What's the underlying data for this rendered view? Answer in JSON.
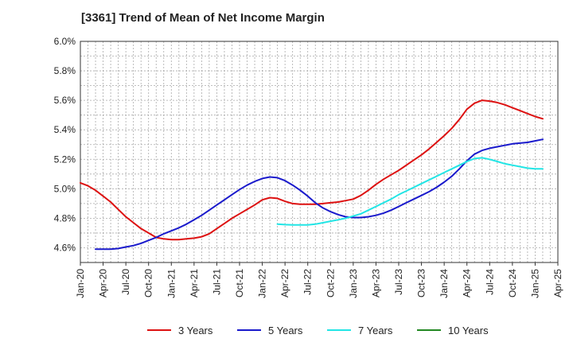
{
  "chart_data": {
    "type": "line",
    "title": "[3361]  Trend of Mean of Net Income Margin",
    "xlabel": "",
    "ylabel": "",
    "x_start": "Jan-20",
    "x_ticks": [
      "Jan-20",
      "Apr-20",
      "Jul-20",
      "Oct-20",
      "Jan-21",
      "Apr-21",
      "Jul-21",
      "Oct-21",
      "Jan-22",
      "Apr-22",
      "Jul-22",
      "Oct-22",
      "Jan-23",
      "Apr-23",
      "Jul-23",
      "Oct-23",
      "Jan-24",
      "Apr-24",
      "Jul-24",
      "Oct-24",
      "Jan-25",
      "Apr-25"
    ],
    "y_ticks": [
      "4.6%",
      "4.8%",
      "5.0%",
      "5.2%",
      "5.4%",
      "5.6%",
      "5.8%",
      "6.0%"
    ],
    "ylim": [
      4.5,
      6.0
    ],
    "grid": true,
    "legend_position": "bottom",
    "series": [
      {
        "name": "3 Years",
        "color": "#dd1111",
        "points": [
          [
            "Jan-20",
            5.04
          ],
          [
            "Feb-20",
            5.02
          ],
          [
            "Mar-20",
            4.99
          ],
          [
            "Apr-20",
            4.95
          ],
          [
            "May-20",
            4.91
          ],
          [
            "Jun-20",
            4.86
          ],
          [
            "Jul-20",
            4.81
          ],
          [
            "Aug-20",
            4.77
          ],
          [
            "Sep-20",
            4.73
          ],
          [
            "Oct-20",
            4.7
          ],
          [
            "Nov-20",
            4.67
          ],
          [
            "Dec-20",
            4.66
          ],
          [
            "Jan-21",
            4.655
          ],
          [
            "Feb-21",
            4.655
          ],
          [
            "Mar-21",
            4.66
          ],
          [
            "Apr-21",
            4.665
          ],
          [
            "May-21",
            4.675
          ],
          [
            "Jun-21",
            4.695
          ],
          [
            "Jul-21",
            4.73
          ],
          [
            "Aug-21",
            4.765
          ],
          [
            "Sep-21",
            4.8
          ],
          [
            "Oct-21",
            4.83
          ],
          [
            "Nov-21",
            4.86
          ],
          [
            "Dec-21",
            4.89
          ],
          [
            "Jan-22",
            4.925
          ],
          [
            "Feb-22",
            4.94
          ],
          [
            "Mar-22",
            4.935
          ],
          [
            "Apr-22",
            4.915
          ],
          [
            "May-22",
            4.9
          ],
          [
            "Jun-22",
            4.895
          ],
          [
            "Jul-22",
            4.895
          ],
          [
            "Aug-22",
            4.895
          ],
          [
            "Sep-22",
            4.9
          ],
          [
            "Oct-22",
            4.905
          ],
          [
            "Nov-22",
            4.91
          ],
          [
            "Dec-22",
            4.92
          ],
          [
            "Jan-23",
            4.93
          ],
          [
            "Feb-23",
            4.955
          ],
          [
            "Mar-23",
            4.99
          ],
          [
            "Apr-23",
            5.03
          ],
          [
            "May-23",
            5.065
          ],
          [
            "Jun-23",
            5.095
          ],
          [
            "Jul-23",
            5.125
          ],
          [
            "Aug-23",
            5.16
          ],
          [
            "Sep-23",
            5.195
          ],
          [
            "Oct-23",
            5.23
          ],
          [
            "Nov-23",
            5.27
          ],
          [
            "Dec-23",
            5.315
          ],
          [
            "Jan-24",
            5.36
          ],
          [
            "Feb-24",
            5.41
          ],
          [
            "Mar-24",
            5.47
          ],
          [
            "Apr-24",
            5.54
          ],
          [
            "May-24",
            5.58
          ],
          [
            "Jun-24",
            5.6
          ],
          [
            "Jul-24",
            5.595
          ],
          [
            "Aug-24",
            5.585
          ],
          [
            "Sep-24",
            5.57
          ],
          [
            "Oct-24",
            5.55
          ],
          [
            "Nov-24",
            5.53
          ],
          [
            "Dec-24",
            5.51
          ],
          [
            "Jan-25",
            5.49
          ],
          [
            "Feb-25",
            5.475
          ]
        ]
      },
      {
        "name": "5 Years",
        "color": "#1a1acc",
        "points": [
          [
            "Mar-20",
            4.59
          ],
          [
            "Apr-20",
            4.59
          ],
          [
            "May-20",
            4.59
          ],
          [
            "Jun-20",
            4.595
          ],
          [
            "Jul-20",
            4.605
          ],
          [
            "Aug-20",
            4.615
          ],
          [
            "Sep-20",
            4.63
          ],
          [
            "Oct-20",
            4.65
          ],
          [
            "Nov-20",
            4.67
          ],
          [
            "Dec-20",
            4.695
          ],
          [
            "Jan-21",
            4.715
          ],
          [
            "Feb-21",
            4.735
          ],
          [
            "Mar-21",
            4.76
          ],
          [
            "Apr-21",
            4.79
          ],
          [
            "May-21",
            4.82
          ],
          [
            "Jun-21",
            4.855
          ],
          [
            "Jul-21",
            4.89
          ],
          [
            "Aug-21",
            4.925
          ],
          [
            "Sep-21",
            4.96
          ],
          [
            "Oct-21",
            4.995
          ],
          [
            "Nov-21",
            5.025
          ],
          [
            "Dec-21",
            5.05
          ],
          [
            "Jan-22",
            5.07
          ],
          [
            "Feb-22",
            5.08
          ],
          [
            "Mar-22",
            5.075
          ],
          [
            "Apr-22",
            5.055
          ],
          [
            "May-22",
            5.025
          ],
          [
            "Jun-22",
            4.99
          ],
          [
            "Jul-22",
            4.95
          ],
          [
            "Aug-22",
            4.905
          ],
          [
            "Sep-22",
            4.87
          ],
          [
            "Oct-22",
            4.845
          ],
          [
            "Nov-22",
            4.825
          ],
          [
            "Dec-22",
            4.81
          ],
          [
            "Jan-23",
            4.805
          ],
          [
            "Feb-23",
            4.805
          ],
          [
            "Mar-23",
            4.81
          ],
          [
            "Apr-23",
            4.82
          ],
          [
            "May-23",
            4.835
          ],
          [
            "Jun-23",
            4.855
          ],
          [
            "Jul-23",
            4.88
          ],
          [
            "Aug-23",
            4.905
          ],
          [
            "Sep-23",
            4.93
          ],
          [
            "Oct-23",
            4.955
          ],
          [
            "Nov-23",
            4.98
          ],
          [
            "Dec-23",
            5.01
          ],
          [
            "Jan-24",
            5.045
          ],
          [
            "Feb-24",
            5.085
          ],
          [
            "Mar-24",
            5.135
          ],
          [
            "Apr-24",
            5.19
          ],
          [
            "May-24",
            5.235
          ],
          [
            "Jun-24",
            5.26
          ],
          [
            "Jul-24",
            5.275
          ],
          [
            "Aug-24",
            5.285
          ],
          [
            "Sep-24",
            5.295
          ],
          [
            "Oct-24",
            5.305
          ],
          [
            "Nov-24",
            5.31
          ],
          [
            "Dec-24",
            5.315
          ],
          [
            "Jan-25",
            5.325
          ],
          [
            "Feb-25",
            5.335
          ]
        ]
      },
      {
        "name": "7 Years",
        "color": "#22e5e5",
        "points": [
          [
            "Mar-22",
            4.76
          ],
          [
            "Apr-22",
            4.757
          ],
          [
            "May-22",
            4.755
          ],
          [
            "Jun-22",
            4.755
          ],
          [
            "Jul-22",
            4.755
          ],
          [
            "Aug-22",
            4.76
          ],
          [
            "Sep-22",
            4.77
          ],
          [
            "Oct-22",
            4.78
          ],
          [
            "Nov-22",
            4.79
          ],
          [
            "Dec-22",
            4.8
          ],
          [
            "Jan-23",
            4.815
          ],
          [
            "Feb-23",
            4.83
          ],
          [
            "Mar-23",
            4.855
          ],
          [
            "Apr-23",
            4.88
          ],
          [
            "May-23",
            4.905
          ],
          [
            "Jun-23",
            4.93
          ],
          [
            "Jul-23",
            4.96
          ],
          [
            "Aug-23",
            4.985
          ],
          [
            "Sep-23",
            5.01
          ],
          [
            "Oct-23",
            5.035
          ],
          [
            "Nov-23",
            5.06
          ],
          [
            "Dec-23",
            5.085
          ],
          [
            "Jan-24",
            5.11
          ],
          [
            "Feb-24",
            5.135
          ],
          [
            "Mar-24",
            5.16
          ],
          [
            "Apr-24",
            5.185
          ],
          [
            "May-24",
            5.205
          ],
          [
            "Jun-24",
            5.21
          ],
          [
            "Jul-24",
            5.2
          ],
          [
            "Aug-24",
            5.185
          ],
          [
            "Sep-24",
            5.17
          ],
          [
            "Oct-24",
            5.16
          ],
          [
            "Nov-24",
            5.15
          ],
          [
            "Dec-24",
            5.14
          ],
          [
            "Jan-25",
            5.135
          ],
          [
            "Feb-25",
            5.135
          ]
        ]
      },
      {
        "name": "10 Years",
        "color": "#228822",
        "points": []
      }
    ]
  }
}
